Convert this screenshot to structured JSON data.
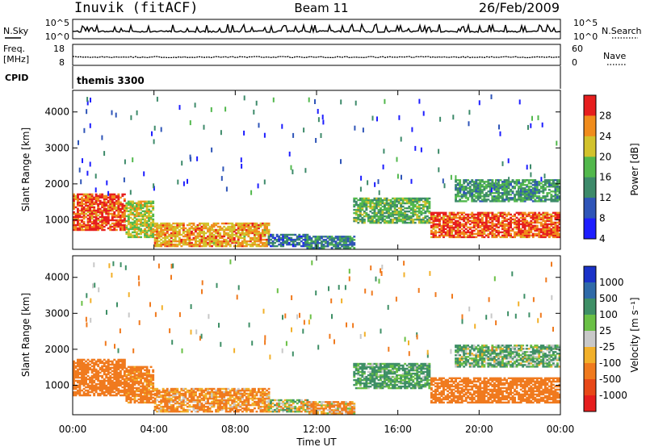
{
  "header": {
    "station": "Inuvik (fitACF)",
    "beam": "Beam 11",
    "date": "26/Feb/2009"
  },
  "noise_panel": {
    "left_label": "N.Sky",
    "left_ticks": [
      "10^5",
      "10^0"
    ],
    "right_label": "N.Search",
    "right_ticks": [
      "10^5",
      "10^0"
    ]
  },
  "freq_panel": {
    "left_label_1": "Freq.",
    "left_label_2": "[MHz]",
    "left_ticks": [
      "18",
      "8"
    ],
    "right_label": "Nave",
    "right_ticks": [
      "60",
      "0"
    ]
  },
  "cpid_panel": {
    "label": "CPID",
    "value": "themis 3300"
  },
  "power_panel": {
    "ylabel": "Slant Range [km]",
    "y_ticks": [
      "1000",
      "2000",
      "3000",
      "4000"
    ],
    "colorbar_label": "Power [dB]",
    "colorbar_ticks": [
      "4",
      "8",
      "12",
      "16",
      "20",
      "24",
      "28"
    ],
    "colorbar_colors": [
      "#1e1eff",
      "#2f55b8",
      "#3d8a6a",
      "#52b84c",
      "#d2c22c",
      "#f08c1c",
      "#e61e1e"
    ]
  },
  "velocity_panel": {
    "ylabel": "Slant Range [km]",
    "y_ticks": [
      "1000",
      "2000",
      "3000",
      "4000"
    ],
    "colorbar_label": "Velocity [m s⁻¹]",
    "colorbar_ticks": [
      "1000",
      "500",
      "100",
      "25",
      "-25",
      "-100",
      "-500",
      "-1000"
    ],
    "colorbar_colors": [
      "#1a32c8",
      "#2f6aa8",
      "#3e8f66",
      "#6ac045",
      "#c8c8c8",
      "#f2b02a",
      "#f07a1e",
      "#e84818",
      "#e61e1e"
    ]
  },
  "x_axis": {
    "label": "Time UT",
    "ticks": [
      "00:00",
      "04:00",
      "08:00",
      "12:00",
      "16:00",
      "20:00",
      "00:00"
    ]
  },
  "chart_data": {
    "type": "heatmap",
    "title": "Inuvik (fitACF) Beam 11 26/Feb/2009",
    "xlabel": "Time UT",
    "ylabel": "Slant Range [km]",
    "xlim": [
      0,
      24
    ],
    "ylim": [
      180,
      4600
    ],
    "panels": [
      {
        "name": "Power [dB]",
        "zlim": [
          0,
          30
        ],
        "regions": [
          {
            "t": [
              0.0,
              2.6
            ],
            "range": [
              700,
              1700
            ],
            "value": 26
          },
          {
            "t": [
              2.6,
              4.0
            ],
            "range": [
              500,
              1500
            ],
            "value": 18
          },
          {
            "t": [
              4.0,
              9.6
            ],
            "range": [
              250,
              900
            ],
            "value": 22
          },
          {
            "t": [
              9.6,
              11.5
            ],
            "range": [
              250,
              600
            ],
            "value": 8
          },
          {
            "t": [
              11.5,
              13.8
            ],
            "range": [
              200,
              550
            ],
            "value": 10
          },
          {
            "t": [
              13.8,
              17.6
            ],
            "range": [
              900,
              1600
            ],
            "value": 14
          },
          {
            "t": [
              17.6,
              24.0
            ],
            "range": [
              500,
              1200
            ],
            "value": 26
          },
          {
            "t": [
              18.8,
              24.0
            ],
            "range": [
              1500,
              2100
            ],
            "value": 12
          }
        ]
      },
      {
        "name": "Velocity [m s-1]",
        "zlim": [
          -1000,
          1000
        ],
        "regions": [
          {
            "t": [
              0.0,
              2.6
            ],
            "range": [
              700,
              1700
            ],
            "value": -300
          },
          {
            "t": [
              2.6,
              4.0
            ],
            "range": [
              500,
              1500
            ],
            "value": -200
          },
          {
            "t": [
              4.0,
              9.6
            ],
            "range": [
              250,
              900
            ],
            "value": -150
          },
          {
            "t": [
              9.6,
              11.5
            ],
            "range": [
              250,
              600
            ],
            "value": 0
          },
          {
            "t": [
              11.5,
              13.8
            ],
            "range": [
              200,
              550
            ],
            "value": -100
          },
          {
            "t": [
              13.8,
              17.6
            ],
            "range": [
              900,
              1600
            ],
            "value": 150
          },
          {
            "t": [
              17.6,
              24.0
            ],
            "range": [
              500,
              1200
            ],
            "value": -300
          },
          {
            "t": [
              18.8,
              24.0
            ],
            "range": [
              1500,
              2100
            ],
            "value": 100
          }
        ]
      }
    ]
  }
}
